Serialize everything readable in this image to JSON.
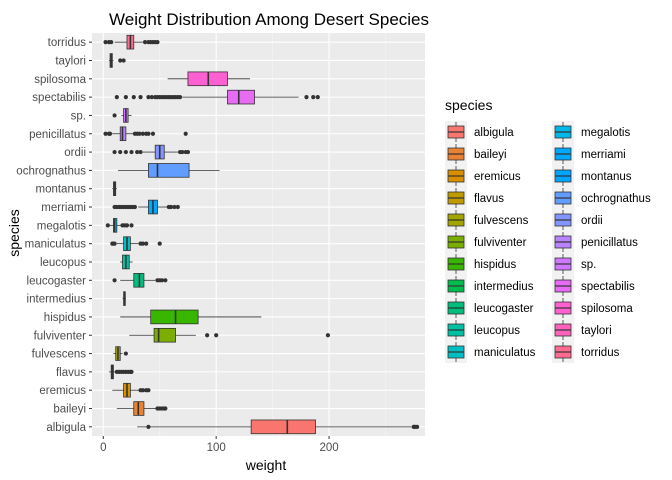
{
  "chart_data": {
    "type": "boxplot",
    "orientation": "horizontal",
    "title": "Weight Distribution Among Desert Species",
    "xlabel": "weight",
    "ylabel": "species",
    "xlim": [
      -10,
      285
    ],
    "xticks": [
      0,
      100,
      200
    ],
    "grid": true,
    "legend": {
      "title": "species",
      "position": "right",
      "columns": 2
    },
    "species": [
      {
        "name": "albigula",
        "color": "#F8766D",
        "min": 30,
        "q1": 131,
        "median": 163,
        "q3": 188,
        "max": 273,
        "outliers": [
          40,
          275,
          276,
          278
        ]
      },
      {
        "name": "baileyi",
        "color": "#EA8331",
        "min": 12,
        "q1": 27,
        "median": 31,
        "q3": 36,
        "max": 47,
        "outliers": [
          48,
          50,
          52,
          54,
          55
        ]
      },
      {
        "name": "eremicus",
        "color": "#D89000",
        "min": 8,
        "q1": 18,
        "median": 21,
        "q3": 24,
        "max": 32,
        "outliers": [
          33,
          35,
          38,
          40
        ]
      },
      {
        "name": "flavus",
        "color": "#C09B00",
        "min": 5,
        "q1": 7,
        "median": 8,
        "q3": 9,
        "max": 11,
        "outliers": [
          12,
          14,
          16,
          18,
          20,
          22,
          24,
          25
        ]
      },
      {
        "name": "fulvescens",
        "color": "#A3A500",
        "min": 9,
        "q1": 11,
        "median": 13,
        "q3": 15,
        "max": 17,
        "outliers": [
          20
        ]
      },
      {
        "name": "fulviventer",
        "color": "#7CAE00",
        "min": 23,
        "q1": 45,
        "median": 49,
        "q3": 64,
        "max": 82,
        "outliers": [
          92,
          100,
          199
        ]
      },
      {
        "name": "hispidus",
        "color": "#39B600",
        "min": 15,
        "q1": 42,
        "median": 64,
        "q3": 84,
        "max": 140,
        "outliers": []
      },
      {
        "name": "intermedius",
        "color": "#00BB4E",
        "min": 17,
        "q1": 18,
        "median": 19,
        "q3": 19.5,
        "max": 20,
        "outliers": []
      },
      {
        "name": "leucogaster",
        "color": "#00BF7D",
        "min": 15,
        "q1": 27,
        "median": 32,
        "q3": 36,
        "max": 46,
        "outliers": [
          10,
          48,
          50,
          52,
          55
        ]
      },
      {
        "name": "leucopus",
        "color": "#00C1A3",
        "min": 15,
        "q1": 17,
        "median": 20,
        "q3": 23,
        "max": 26,
        "outliers": []
      },
      {
        "name": "maniculatus",
        "color": "#00BFC4",
        "min": 12,
        "q1": 18,
        "median": 21,
        "q3": 24,
        "max": 31,
        "outliers": [
          8,
          9,
          10,
          33,
          35,
          38,
          50
        ]
      },
      {
        "name": "megalotis",
        "color": "#00B8E7",
        "min": 5,
        "q1": 9,
        "median": 10,
        "q3": 12,
        "max": 16,
        "outliers": [
          4,
          17,
          19,
          21,
          25
        ]
      },
      {
        "name": "merriami",
        "color": "#00A9FF",
        "min": 31,
        "q1": 40,
        "median": 44,
        "q3": 48,
        "max": 57,
        "outliers": [
          10,
          12,
          14,
          16,
          18,
          20,
          22,
          24,
          26,
          28,
          58,
          60,
          63,
          66
        ]
      },
      {
        "name": "montanus",
        "color": "#00A5FF",
        "min": 8,
        "q1": 9,
        "median": 10,
        "q3": 11,
        "max": 12,
        "outliers": []
      },
      {
        "name": "ochrognathus",
        "color": "#619CFF",
        "min": 13,
        "q1": 40,
        "median": 48,
        "q3": 76,
        "max": 103,
        "outliers": []
      },
      {
        "name": "ordii",
        "color": "#8494FF",
        "min": 35,
        "q1": 46,
        "median": 50,
        "q3": 54,
        "max": 66,
        "outliers": [
          10,
          15,
          20,
          25,
          30,
          33,
          68,
          70,
          73,
          75
        ]
      },
      {
        "name": "penicillatus",
        "color": "#B983FF",
        "min": 8,
        "q1": 15,
        "median": 17,
        "q3": 20,
        "max": 27,
        "outliers": [
          2,
          5,
          6,
          28,
          30,
          32,
          35,
          38,
          40,
          44,
          73
        ]
      },
      {
        "name": "sp.",
        "color": "#CF78FF",
        "min": 16,
        "q1": 18,
        "median": 20,
        "q3": 22,
        "max": 25,
        "outliers": [
          10
        ]
      },
      {
        "name": "spectabilis",
        "color": "#E76BF3",
        "min": 70,
        "q1": 110,
        "median": 120,
        "q3": 134,
        "max": 173,
        "outliers": [
          12,
          20,
          27,
          33,
          40,
          43,
          46,
          48,
          50,
          52,
          54,
          56,
          58,
          60,
          62,
          64,
          66,
          68,
          180,
          186,
          190
        ]
      },
      {
        "name": "spilosoma",
        "color": "#FD61D1",
        "min": 57,
        "q1": 75,
        "median": 93,
        "q3": 110,
        "max": 130,
        "outliers": []
      },
      {
        "name": "taylori",
        "color": "#FF62BC",
        "min": 5,
        "q1": 6,
        "median": 7,
        "q3": 8,
        "max": 9,
        "outliers": [
          15,
          18
        ]
      },
      {
        "name": "torridus",
        "color": "#FF6C91",
        "min": 10,
        "q1": 21,
        "median": 24,
        "q3": 27,
        "max": 35,
        "outliers": [
          2,
          5,
          7,
          37,
          40,
          42,
          44,
          46,
          48
        ]
      }
    ]
  }
}
